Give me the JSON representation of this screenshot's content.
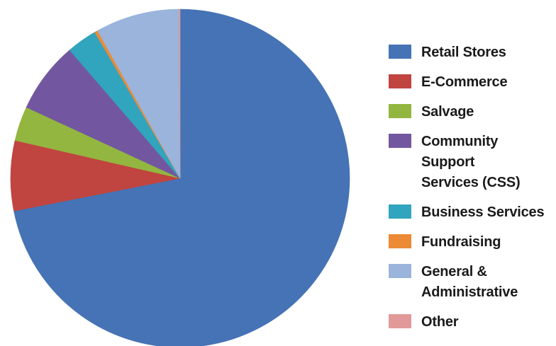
{
  "chart_data": {
    "type": "pie",
    "title": "",
    "start_angle_deg": 0,
    "direction": "clockwise",
    "legend_position": "right",
    "slices": [
      {
        "label": "Retail Stores",
        "value": 71.9,
        "color": "#4573B5"
      },
      {
        "label": "E-Commerce",
        "value": 6.7,
        "color": "#C0443F"
      },
      {
        "label": "Salvage",
        "value": 3.3,
        "color": "#93B640"
      },
      {
        "label": "Community\nSupport\nServices (CSS)",
        "value": 6.8,
        "color": "#7257A0"
      },
      {
        "label": "Business Services",
        "value": 2.9,
        "color": "#31A4BE"
      },
      {
        "label": "Fundraising",
        "value": 0.3,
        "color": "#EC8A35"
      },
      {
        "label": "General &\nAdministrative",
        "value": 8.0,
        "color": "#9AB4DC"
      },
      {
        "label": "Other",
        "value": 0.1,
        "color": "#E19A99"
      }
    ]
  }
}
